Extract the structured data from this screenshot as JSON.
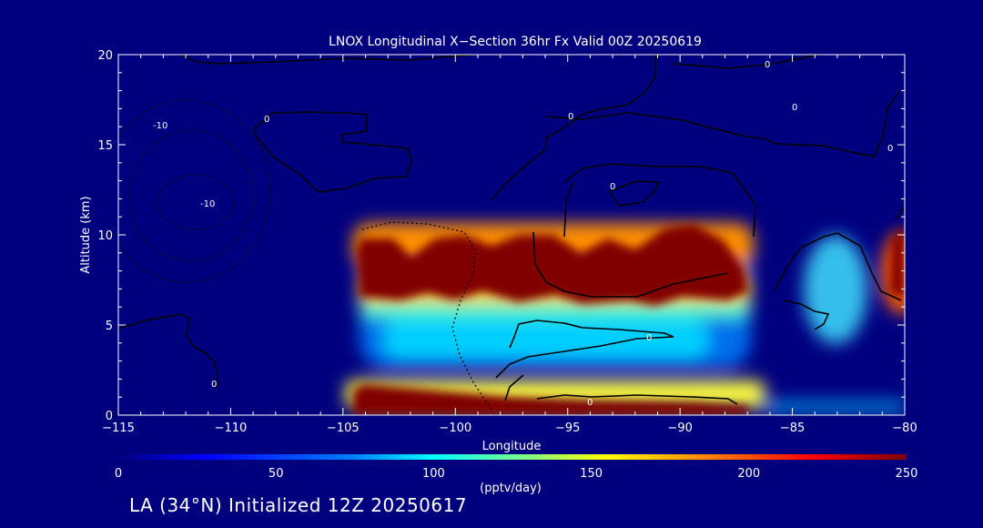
{
  "chart_data": {
    "type": "heatmap",
    "title": "LNOX Longitudinal X−Section 36hr  Fx Valid 00Z 20250619",
    "xlabel": "Longitude",
    "ylabel": "Altitude (km)",
    "xlim": [
      -115,
      -80
    ],
    "ylim": [
      0,
      20
    ],
    "x_ticks": [
      -115,
      -110,
      -105,
      -100,
      -95,
      -90,
      -85,
      -80
    ],
    "x_tick_labels": [
      "−115",
      "−110",
      "−105",
      "−100",
      "−95",
      "−90",
      "−85",
      "−80"
    ],
    "y_ticks": [
      0,
      5,
      10,
      15,
      20
    ],
    "y_tick_labels": [
      "0",
      "5",
      "10",
      "15",
      "20"
    ],
    "colorbar": {
      "min": 0,
      "max": 250,
      "ticks": [
        0,
        50,
        100,
        150,
        200,
        250
      ],
      "tick_labels": [
        "0",
        "50",
        "100",
        "150",
        "200",
        "250"
      ],
      "label": "(pptv/day)"
    },
    "contour_labels": [
      "-10",
      "-10",
      "0",
      "0",
      "0",
      "0",
      "0",
      "0",
      "0",
      "0",
      "0"
    ],
    "background_color": "#00007f",
    "colormap": [
      "#00007f",
      "#0000ff",
      "#0080ff",
      "#00ffff",
      "#80ff80",
      "#ffff00",
      "#ff8000",
      "#ff0000",
      "#800000"
    ]
  },
  "footer": "LA (34°N) Initialized 12Z 20250617"
}
